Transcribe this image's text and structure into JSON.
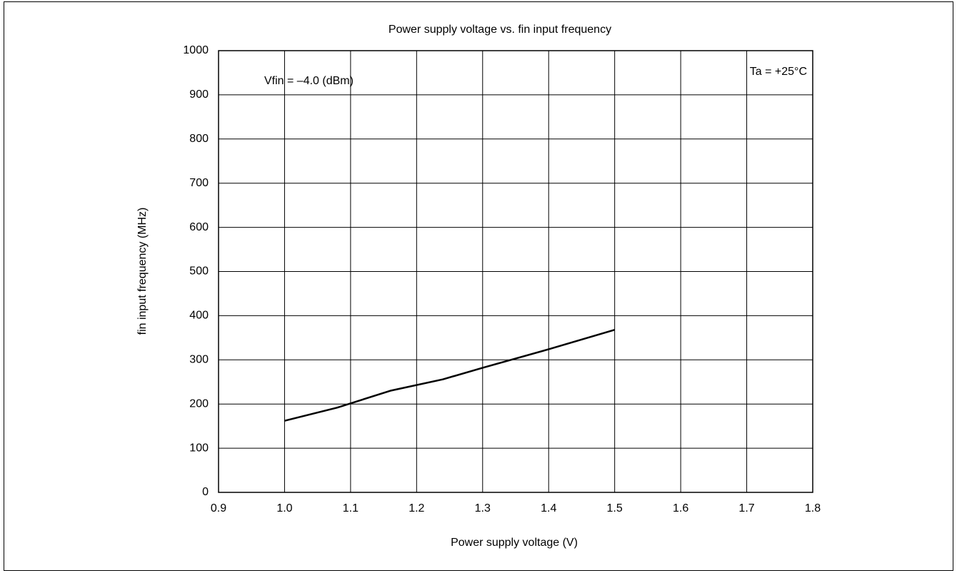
{
  "chart_data": {
    "type": "line",
    "title": "Power supply voltage vs. fin input frequency",
    "xlabel": "Power supply voltage (V)",
    "ylabel": "fin input frequency (MHz)",
    "annotations": [
      "Vfin = –4.0 (dBm)",
      "Ta = +25°C"
    ],
    "x": [
      1.0,
      1.08,
      1.16,
      1.24,
      1.3,
      1.4,
      1.5
    ],
    "values": [
      162,
      192,
      230,
      256,
      282,
      324,
      368
    ],
    "color": "#000000",
    "xlim": [
      0.9,
      1.8
    ],
    "xticks": [
      0.9,
      {
        "value": 1,
        "label": "1.0"
      },
      1.1,
      1.2,
      1.3,
      1.4,
      1.5,
      1.6,
      1.7,
      1.8
    ],
    "ylim": [
      0,
      1000
    ],
    "yticks": [
      0,
      100,
      200,
      300,
      400,
      500,
      600,
      700,
      800,
      900,
      1000
    ],
    "grid": true
  }
}
